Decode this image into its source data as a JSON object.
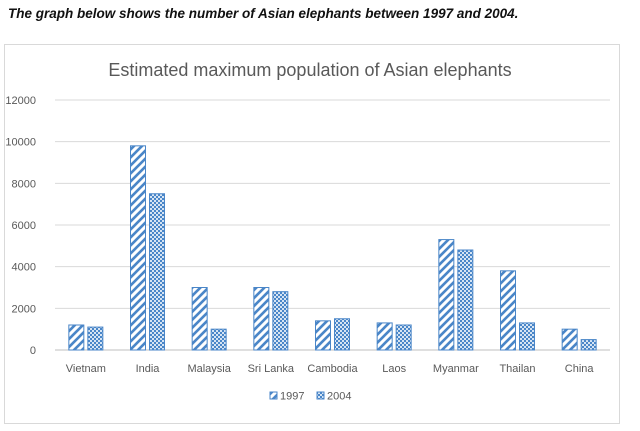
{
  "caption": "The graph below shows the number of Asian elephants between 1997 and 2004.",
  "colors": {
    "bar_stroke": "#4a86c8",
    "pattern": "#4a86c8",
    "text": "#595959",
    "grid": "#d9d9d9"
  },
  "chart_data": {
    "type": "bar",
    "title": "Estimated maximum population of Asian elephants",
    "xlabel": "",
    "ylabel": "",
    "ylim": [
      0,
      12000
    ],
    "yticks": [
      "0",
      "2000",
      "4000",
      "6000",
      "8000",
      "10000",
      "12000"
    ],
    "grid": true,
    "legend_position": "bottom",
    "categories": [
      "Vietnam",
      "India",
      "Malaysia",
      "Sri Lanka",
      "Cambodia",
      "Laos",
      "Myanmar",
      "Thailan",
      "China"
    ],
    "series": [
      {
        "name": "1997",
        "pattern": "diagonal-stripes",
        "values": [
          1200,
          9800,
          3000,
          3000,
          1400,
          1300,
          5300,
          3800,
          1000
        ]
      },
      {
        "name": "2004",
        "pattern": "dots",
        "values": [
          1100,
          7500,
          1000,
          2800,
          1500,
          1200,
          4800,
          1300,
          500
        ]
      }
    ]
  }
}
